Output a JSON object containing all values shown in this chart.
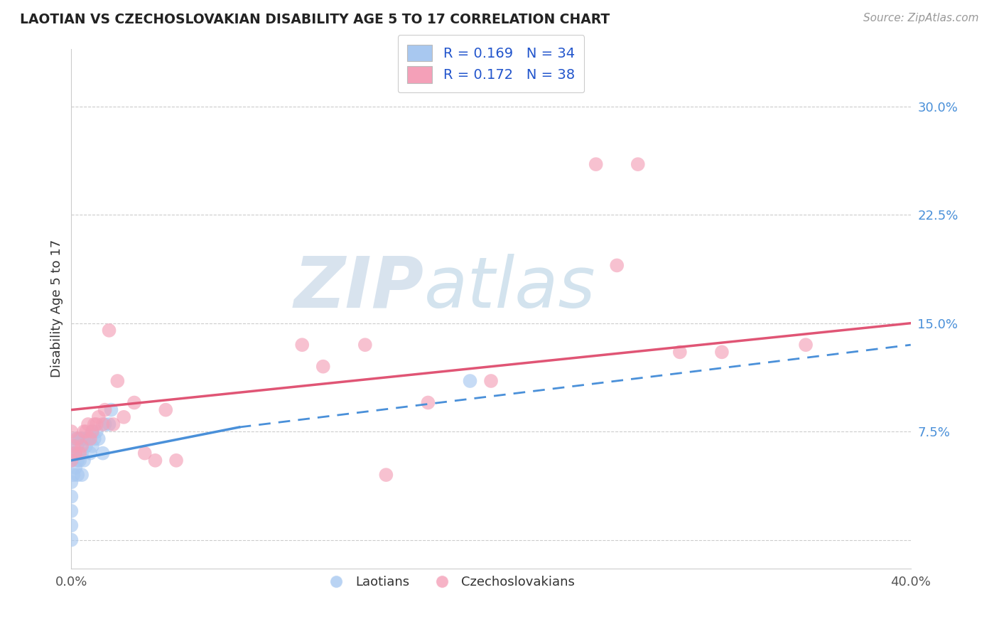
{
  "title": "LAOTIAN VS CZECHOSLOVAKIAN DISABILITY AGE 5 TO 17 CORRELATION CHART",
  "source": "Source: ZipAtlas.com",
  "ylabel": "Disability Age 5 to 17",
  "legend_label1": "R = 0.169   N = 34",
  "legend_label2": "R = 0.172   N = 38",
  "legend_bottom1": "Laotians",
  "legend_bottom2": "Czechoslovakians",
  "ytick_values": [
    0.0,
    0.075,
    0.15,
    0.225,
    0.3
  ],
  "xlim": [
    0.0,
    0.4
  ],
  "ylim": [
    -0.02,
    0.34
  ],
  "blue_color": "#a8c8f0",
  "pink_color": "#f4a0b8",
  "line_blue": "#4a90d9",
  "line_pink": "#e05575",
  "laotian_x": [
    0.0,
    0.0,
    0.0,
    0.0,
    0.0,
    0.0,
    0.001,
    0.001,
    0.002,
    0.002,
    0.002,
    0.003,
    0.003,
    0.003,
    0.004,
    0.004,
    0.005,
    0.005,
    0.005,
    0.006,
    0.006,
    0.007,
    0.008,
    0.009,
    0.01,
    0.01,
    0.011,
    0.012,
    0.013,
    0.015,
    0.016,
    0.018,
    0.019,
    0.19
  ],
  "laotian_y": [
    0.0,
    0.01,
    0.02,
    0.03,
    0.04,
    0.055,
    0.045,
    0.06,
    0.05,
    0.06,
    0.07,
    0.045,
    0.055,
    0.065,
    0.055,
    0.07,
    0.045,
    0.06,
    0.07,
    0.055,
    0.07,
    0.065,
    0.07,
    0.06,
    0.065,
    0.075,
    0.07,
    0.075,
    0.07,
    0.06,
    0.08,
    0.08,
    0.09,
    0.11
  ],
  "czech_x": [
    0.0,
    0.0,
    0.001,
    0.002,
    0.003,
    0.004,
    0.005,
    0.006,
    0.007,
    0.008,
    0.009,
    0.01,
    0.011,
    0.012,
    0.013,
    0.015,
    0.016,
    0.018,
    0.02,
    0.022,
    0.025,
    0.03,
    0.035,
    0.04,
    0.045,
    0.05,
    0.11,
    0.12,
    0.14,
    0.15,
    0.17,
    0.2,
    0.25,
    0.26,
    0.27,
    0.29,
    0.31,
    0.35
  ],
  "czech_y": [
    0.055,
    0.075,
    0.065,
    0.06,
    0.07,
    0.06,
    0.065,
    0.075,
    0.075,
    0.08,
    0.07,
    0.075,
    0.08,
    0.08,
    0.085,
    0.08,
    0.09,
    0.145,
    0.08,
    0.11,
    0.085,
    0.095,
    0.06,
    0.055,
    0.09,
    0.055,
    0.135,
    0.12,
    0.135,
    0.045,
    0.095,
    0.11,
    0.26,
    0.19,
    0.26,
    0.13,
    0.13,
    0.135
  ],
  "line_lao_x0": 0.0,
  "line_lao_x1": 0.4,
  "line_lao_y0": 0.055,
  "line_lao_y1": 0.13,
  "line_cze_x0": 0.0,
  "line_cze_x1": 0.4,
  "line_cze_y0": 0.09,
  "line_cze_y1": 0.15,
  "line_dashed_x0": 0.08,
  "line_dashed_x1": 0.4,
  "line_dashed_y0": 0.078,
  "line_dashed_y1": 0.135
}
